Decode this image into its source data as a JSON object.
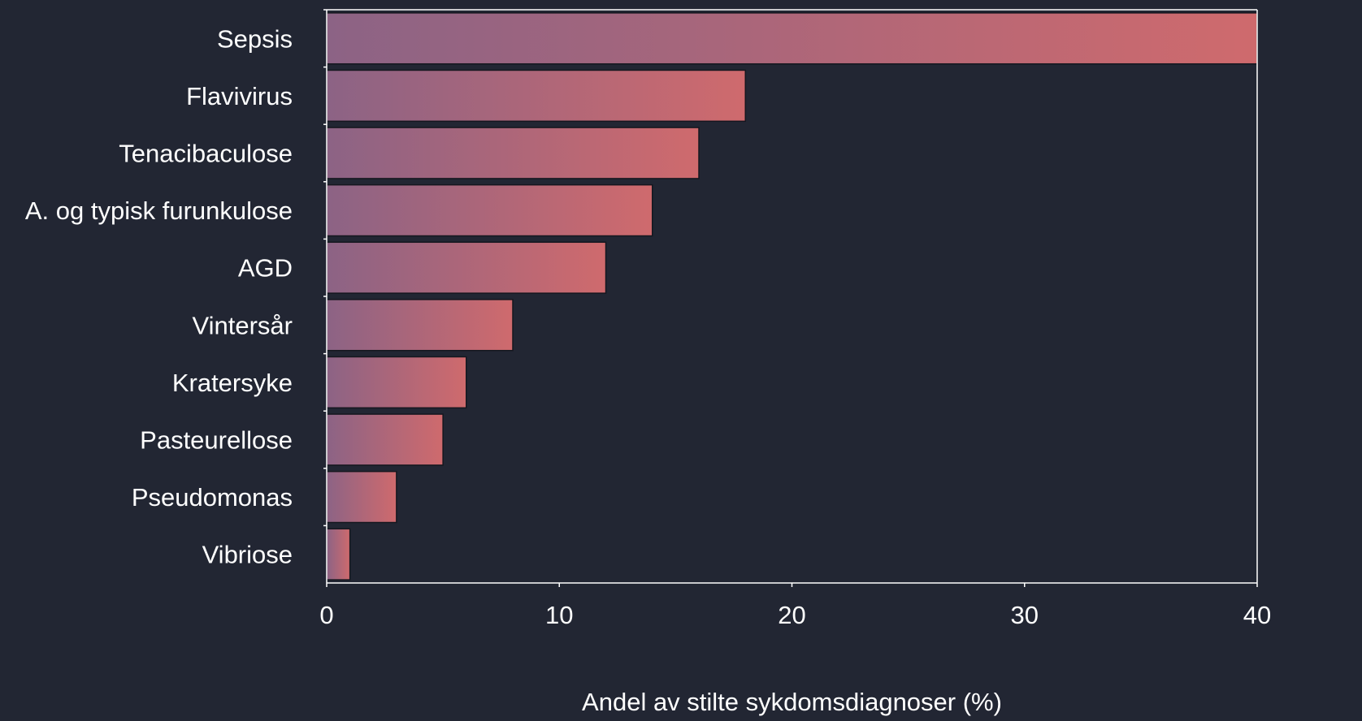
{
  "chart_data": {
    "type": "bar",
    "orientation": "horizontal",
    "categories": [
      "Sepsis",
      "Flavivirus",
      "Tenacibaculose",
      "A. og typisk furunkulose",
      "AGD",
      "Vintersår",
      "Kratersyke",
      "Pasteurellose",
      "Pseudomonas",
      "Vibriose"
    ],
    "values": [
      40,
      18,
      16,
      14,
      12,
      8,
      6,
      5,
      3,
      1
    ],
    "xlabel": "Andel av stilte sykdomsdiagnoser (%)",
    "ylabel": "",
    "xlim": [
      0,
      40
    ],
    "xticks": [
      "0",
      "10",
      "20",
      "30",
      "40"
    ],
    "grid": false,
    "colors": {
      "background": "#222633",
      "bar_gradient_start": "#8c6385",
      "bar_gradient_end": "#cf6a6d",
      "text": "#ffffff",
      "axis": "#ffffff"
    }
  }
}
